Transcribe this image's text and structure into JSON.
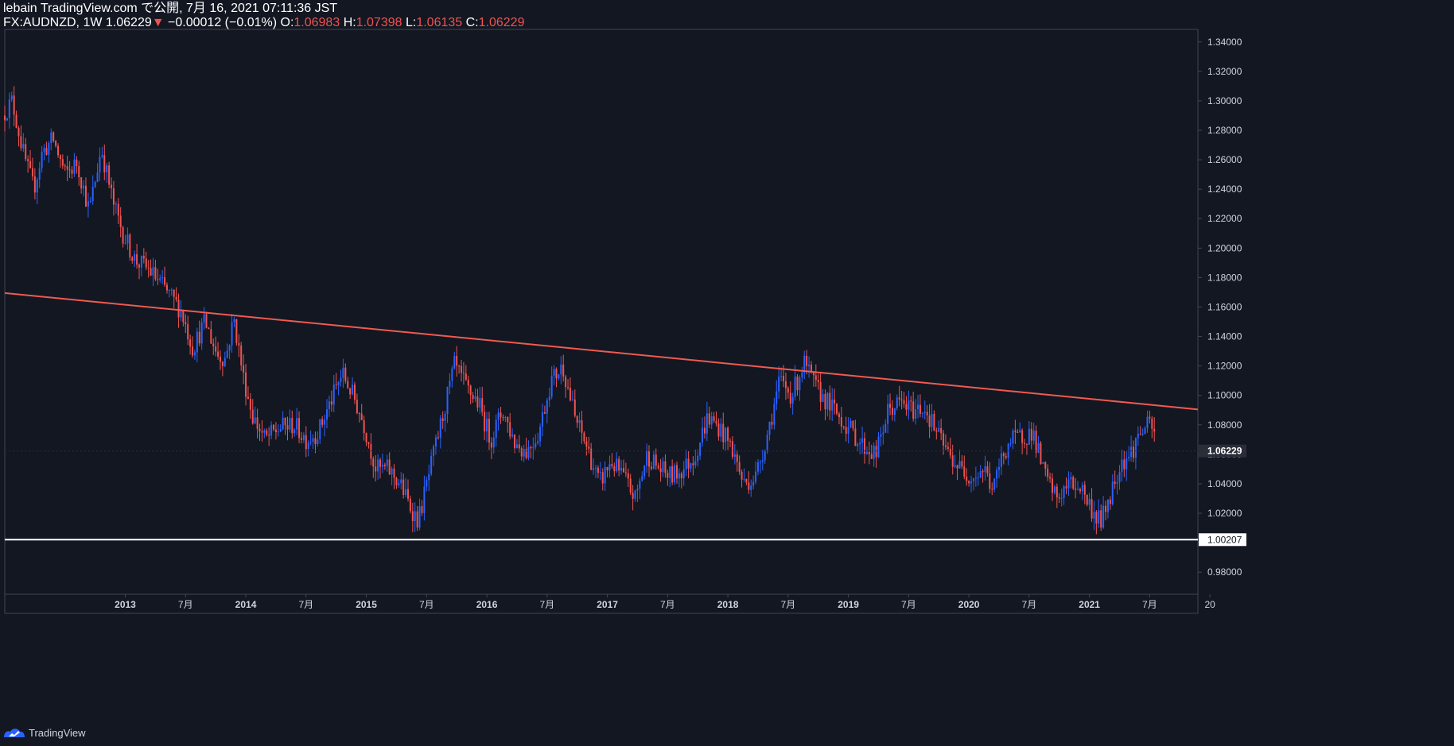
{
  "header": {
    "line1": "lebain TradingView.com で公開, 7月 16, 2021 07:11:36 JST",
    "symbol": "FX:AUDNZD, 1W",
    "last": "1.06229",
    "arrow": "▼",
    "change": "−0.00012 (−0.01%)",
    "o_label": "O:",
    "o_value": "1.06983",
    "h_label": "H:",
    "h_value": "1.07398",
    "l_label": "L:",
    "l_value": "1.06135",
    "c_label": "C:",
    "c_value": "1.06229"
  },
  "footer": {
    "brand": "TradingView"
  },
  "colors": {
    "background": "#131722",
    "up": "#2962ff",
    "down": "#ef5350",
    "trendline": "#f05a50",
    "support": "#ffffff",
    "text": "#d1d4dc"
  },
  "chart_data": {
    "type": "candlestick",
    "symbol": "AUDNZD",
    "timeframe": "1W",
    "ylim": [
      0.965,
      1.3485
    ],
    "xlim": [
      2012.0,
      2021.9
    ],
    "y_ticks": [
      0.98,
      1.02,
      1.04,
      1.06,
      1.08,
      1.1,
      1.12,
      1.14,
      1.16,
      1.18,
      1.2,
      1.22,
      1.24,
      1.26,
      1.28,
      1.3,
      1.32,
      1.34
    ],
    "x_ticks": [
      {
        "t": 2013.0,
        "label": "2013",
        "bold": true
      },
      {
        "t": 2013.5,
        "label": "7月",
        "bold": false
      },
      {
        "t": 2014.0,
        "label": "2014",
        "bold": true
      },
      {
        "t": 2014.5,
        "label": "7月",
        "bold": false
      },
      {
        "t": 2015.0,
        "label": "2015",
        "bold": true
      },
      {
        "t": 2015.5,
        "label": "7月",
        "bold": false
      },
      {
        "t": 2016.0,
        "label": "2016",
        "bold": true
      },
      {
        "t": 2016.5,
        "label": "7月",
        "bold": false
      },
      {
        "t": 2017.0,
        "label": "2017",
        "bold": true
      },
      {
        "t": 2017.5,
        "label": "7月",
        "bold": false
      },
      {
        "t": 2018.0,
        "label": "2018",
        "bold": true
      },
      {
        "t": 2018.5,
        "label": "7月",
        "bold": false
      },
      {
        "t": 2019.0,
        "label": "2019",
        "bold": true
      },
      {
        "t": 2019.5,
        "label": "7月",
        "bold": false
      },
      {
        "t": 2020.0,
        "label": "2020",
        "bold": true
      },
      {
        "t": 2020.5,
        "label": "7月",
        "bold": false
      },
      {
        "t": 2021.0,
        "label": "2021",
        "bold": true
      },
      {
        "t": 2021.5,
        "label": "7月",
        "bold": false
      },
      {
        "t": 2022.0,
        "label": "20",
        "bold": false
      }
    ],
    "last_price": {
      "value": 1.06229,
      "label": "1.06229"
    },
    "support_line": {
      "value": 1.00207,
      "label": "1.00207"
    },
    "trendline": {
      "t1": 2012.0,
      "y1": 1.1695,
      "t2": 2021.9,
      "y2": 1.0905
    },
    "price_path": [
      [
        2012.0,
        1.29
      ],
      [
        2012.08,
        1.3
      ],
      [
        2012.18,
        1.262
      ],
      [
        2012.26,
        1.24
      ],
      [
        2012.33,
        1.265
      ],
      [
        2012.42,
        1.274
      ],
      [
        2012.52,
        1.25
      ],
      [
        2012.62,
        1.258
      ],
      [
        2012.72,
        1.225
      ],
      [
        2012.82,
        1.268
      ],
      [
        2012.92,
        1.23
      ],
      [
        2013.0,
        1.21
      ],
      [
        2013.1,
        1.192
      ],
      [
        2013.22,
        1.185
      ],
      [
        2013.35,
        1.172
      ],
      [
        2013.48,
        1.158
      ],
      [
        2013.58,
        1.132
      ],
      [
        2013.68,
        1.15
      ],
      [
        2013.78,
        1.128
      ],
      [
        2013.85,
        1.125
      ],
      [
        2013.92,
        1.152
      ],
      [
        2014.0,
        1.112
      ],
      [
        2014.08,
        1.085
      ],
      [
        2014.18,
        1.07
      ],
      [
        2014.3,
        1.078
      ],
      [
        2014.42,
        1.08
      ],
      [
        2014.52,
        1.07
      ],
      [
        2014.62,
        1.075
      ],
      [
        2014.72,
        1.095
      ],
      [
        2014.82,
        1.115
      ],
      [
        2014.92,
        1.098
      ],
      [
        2015.0,
        1.08
      ],
      [
        2015.1,
        1.05
      ],
      [
        2015.2,
        1.05
      ],
      [
        2015.3,
        1.04
      ],
      [
        2015.38,
        1.025
      ],
      [
        2015.45,
        1.015
      ],
      [
        2015.55,
        1.05
      ],
      [
        2015.65,
        1.085
      ],
      [
        2015.75,
        1.12
      ],
      [
        2015.85,
        1.105
      ],
      [
        2015.95,
        1.095
      ],
      [
        2016.05,
        1.07
      ],
      [
        2016.15,
        1.09
      ],
      [
        2016.25,
        1.068
      ],
      [
        2016.35,
        1.062
      ],
      [
        2016.45,
        1.075
      ],
      [
        2016.55,
        1.11
      ],
      [
        2016.65,
        1.12
      ],
      [
        2016.75,
        1.085
      ],
      [
        2016.85,
        1.065
      ],
      [
        2016.95,
        1.04
      ],
      [
        2017.05,
        1.055
      ],
      [
        2017.15,
        1.045
      ],
      [
        2017.25,
        1.03
      ],
      [
        2017.35,
        1.06
      ],
      [
        2017.45,
        1.05
      ],
      [
        2017.55,
        1.045
      ],
      [
        2017.65,
        1.05
      ],
      [
        2017.75,
        1.06
      ],
      [
        2017.85,
        1.085
      ],
      [
        2017.95,
        1.078
      ],
      [
        2018.05,
        1.065
      ],
      [
        2018.15,
        1.04
      ],
      [
        2018.25,
        1.045
      ],
      [
        2018.35,
        1.075
      ],
      [
        2018.45,
        1.11
      ],
      [
        2018.55,
        1.1
      ],
      [
        2018.65,
        1.122
      ],
      [
        2018.75,
        1.105
      ],
      [
        2018.85,
        1.095
      ],
      [
        2018.95,
        1.085
      ],
      [
        2019.05,
        1.075
      ],
      [
        2019.15,
        1.065
      ],
      [
        2019.25,
        1.06
      ],
      [
        2019.35,
        1.09
      ],
      [
        2019.45,
        1.095
      ],
      [
        2019.55,
        1.09
      ],
      [
        2019.65,
        1.092
      ],
      [
        2019.75,
        1.075
      ],
      [
        2019.85,
        1.06
      ],
      [
        2019.95,
        1.05
      ],
      [
        2020.05,
        1.045
      ],
      [
        2020.15,
        1.05
      ],
      [
        2020.22,
        1.035
      ],
      [
        2020.28,
        1.055
      ],
      [
        2020.35,
        1.068
      ],
      [
        2020.45,
        1.072
      ],
      [
        2020.55,
        1.075
      ],
      [
        2020.65,
        1.045
      ],
      [
        2020.75,
        1.03
      ],
      [
        2020.85,
        1.04
      ],
      [
        2020.95,
        1.038
      ],
      [
        2021.05,
        1.02
      ],
      [
        2021.12,
        1.015
      ],
      [
        2021.2,
        1.035
      ],
      [
        2021.28,
        1.055
      ],
      [
        2021.36,
        1.06
      ],
      [
        2021.44,
        1.075
      ],
      [
        2021.52,
        1.08
      ],
      [
        2021.6,
        1.065
      ],
      [
        2021.7,
        1.07
      ],
      [
        2021.8,
        1.085
      ],
      [
        2021.9,
        1.075
      ]
    ]
  }
}
